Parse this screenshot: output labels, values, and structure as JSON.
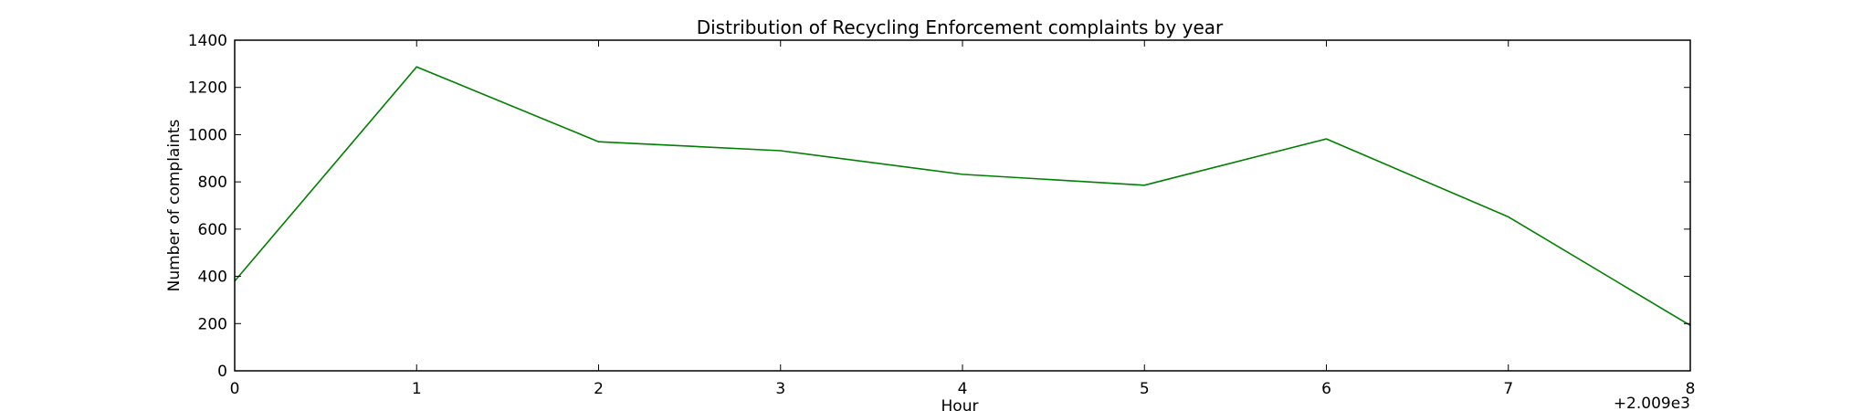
{
  "chart_data": {
    "type": "line",
    "title": "Distribution of  Recycling Enforcement complaints by year",
    "xlabel": "Hour",
    "ylabel": "Number of complaints",
    "x_offset_label": "+2.009e3",
    "x": [
      0,
      1,
      2,
      3,
      4,
      5,
      6,
      7,
      8
    ],
    "series": [
      {
        "values": [
          380,
          1287,
          970,
          932,
          832,
          786,
          982,
          652,
          192
        ]
      }
    ],
    "xlim": [
      0,
      8
    ],
    "ylim": [
      0,
      1400
    ],
    "xticks": [
      0,
      1,
      2,
      3,
      4,
      5,
      6,
      7,
      8
    ],
    "yticks": [
      0,
      200,
      400,
      600,
      800,
      1000,
      1200,
      1400
    ],
    "grid": false,
    "line_color": "#008000"
  }
}
